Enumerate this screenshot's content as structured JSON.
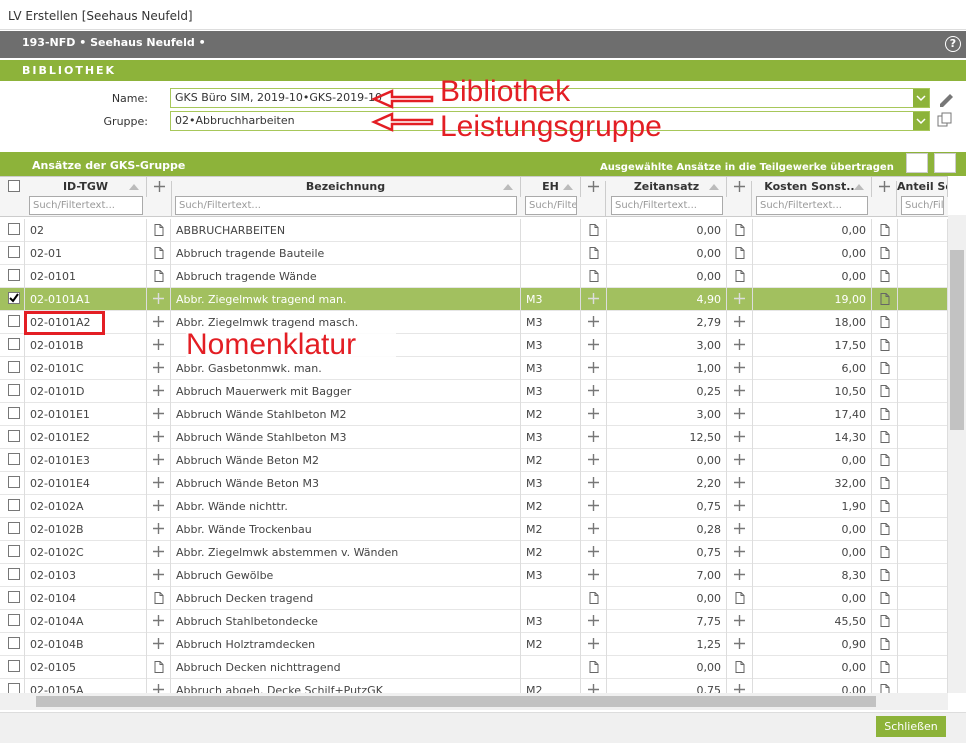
{
  "window_title": "LV Erstellen [Seehaus Neufeld]",
  "header": {
    "project": "193-NFD • Seehaus Neufeld •",
    "help": "?"
  },
  "library": {
    "title": "BIBLIOTHEK",
    "name_label": "Name:",
    "name_value": "GKS Büro SIM, 2019-10•GKS-2019-10",
    "group_label": "Gruppe:",
    "group_value": "02•Abbruchharbeiten"
  },
  "annotations": {
    "library": "Bibliothek",
    "group": "Leistungsgruppe",
    "nomenclature": "Nomenklatur"
  },
  "grid": {
    "title": "Ansätze der GKS-Gruppe",
    "transfer": "Ausgewählte Ansätze in die Teilgewerke übertragen",
    "columns": [
      "ID-TGW",
      "Bezeichnung",
      "EH",
      "Zeitansatz",
      "Kosten Sonst...",
      "Anteil Sons"
    ],
    "filters": [
      "Such/Filtertext...",
      "Such/Filtertext...",
      "Such/Filte",
      "Such/Filtertext...",
      "Such/Filtertext...",
      "Such/Filtertext..."
    ],
    "rows": [
      {
        "id": "02",
        "name": "ABBRUCHARBEITEN",
        "time": "0,00",
        "cost": "0,00"
      },
      {
        "id": "02-01",
        "name": "Abbruch tragende Bauteile",
        "time": "0,00",
        "cost": "0,00"
      },
      {
        "id": "02-0101",
        "name": "Abbruch tragende Wände",
        "time": "0,00",
        "cost": "0,00"
      },
      {
        "id": "02-0101A1",
        "name": "Abbr. Ziegelmwk tragend man.",
        "unit": "M3",
        "time": "4,90",
        "cost": "19,00",
        "checked": true
      },
      {
        "id": "02-0101A2",
        "name": "Abbr. Ziegelmwk tragend masch.",
        "unit": "M3",
        "time": "2,79",
        "cost": "18,00"
      },
      {
        "id": "02-0101B",
        "unit": "M3",
        "time": "3,00",
        "cost": "17,50"
      },
      {
        "id": "02-0101C",
        "name": "Abbr. Gasbetonmwk. man.",
        "unit": "M3",
        "time": "1,00",
        "cost": "6,00"
      },
      {
        "id": "02-0101D",
        "name": "Abbruch Mauerwerk mit Bagger",
        "unit": "M3",
        "time": "0,25",
        "cost": "10,50"
      },
      {
        "id": "02-0101E1",
        "name": "Abbruch Wände Stahlbeton M2",
        "unit": "M2",
        "time": "3,00",
        "cost": "17,40"
      },
      {
        "id": "02-0101E2",
        "name": "Abbruch Wände Stahlbeton M3",
        "unit": "M3",
        "time": "12,50",
        "cost": "14,30"
      },
      {
        "id": "02-0101E3",
        "name": "Abbruch Wände Beton M2",
        "unit": "M2",
        "time": "0,00",
        "cost": "0,00"
      },
      {
        "id": "02-0101E4",
        "name": "Abbruch Wände Beton M3",
        "unit": "M3",
        "time": "2,20",
        "cost": "32,00"
      },
      {
        "id": "02-0102A",
        "name": "Abbr. Wände nichttr.",
        "unit": "M2",
        "time": "0,75",
        "cost": "1,90"
      },
      {
        "id": "02-0102B",
        "name": "Abbr. Wände Trockenbau",
        "unit": "M2",
        "time": "0,28",
        "cost": "0,00"
      },
      {
        "id": "02-0102C",
        "name": "Abbr. Ziegelmwk abstemmen v. Wänden",
        "unit": "M2",
        "time": "0,75",
        "cost": "0,00"
      },
      {
        "id": "02-0103",
        "name": "Abbruch Gewölbe",
        "unit": "M3",
        "time": "7,00",
        "cost": "8,30"
      },
      {
        "id": "02-0104",
        "name": "Abbruch Decken tragend",
        "time": "0,00",
        "cost": "0,00"
      },
      {
        "id": "02-0104A",
        "name": "Abbruch Stahlbetondecke",
        "unit": "M3",
        "time": "7,75",
        "cost": "45,50"
      },
      {
        "id": "02-0104B",
        "name": "Abbruch Holztramdecken",
        "unit": "M2",
        "time": "1,25",
        "cost": "0,90"
      },
      {
        "id": "02-0105",
        "name": "Abbruch Decken nichttragend",
        "time": "0,00",
        "cost": "0,00"
      },
      {
        "id": "02-0105A",
        "name": "Abbruch abgeh. Decke Schilf+PutzGK",
        "unit": "M2",
        "time": "0,75",
        "cost": "0,00"
      }
    ]
  },
  "footer": {
    "close": "Schließen"
  }
}
